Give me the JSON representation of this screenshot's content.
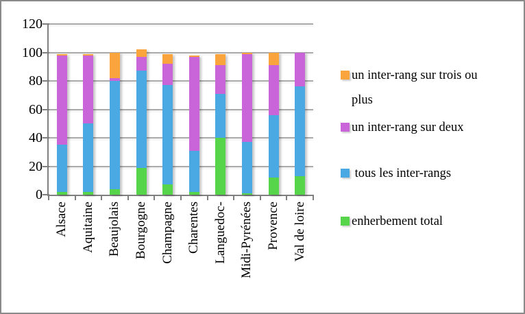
{
  "chart_data": {
    "type": "bar",
    "stacked": true,
    "title": "",
    "xlabel": "",
    "ylabel": "",
    "categories": [
      "Alsace",
      "Aquitaine",
      "Beaujolais",
      "Bourgogne",
      "Champagne",
      "Charentes",
      "Languedoc-",
      "Midi-Pyrénées",
      "Provence",
      "Val de loire"
    ],
    "series": [
      {
        "name": "enherbement total",
        "color": "#57D54A",
        "values": [
          2,
          2,
          4,
          19,
          7,
          2,
          40,
          1,
          12,
          13
        ]
      },
      {
        "name": "tous les inter-rangs",
        "color": "#4AA8E3",
        "values": [
          33,
          48,
          76,
          68,
          70,
          29,
          31,
          36,
          44,
          63
        ]
      },
      {
        "name": "un inter-rang sur deux",
        "color": "#C965D9",
        "values": [
          63,
          48,
          2,
          10,
          15,
          66,
          20,
          62,
          35,
          24
        ]
      },
      {
        "name": "un inter-rang sur trois ou plus",
        "color": "#F9A43C",
        "values": [
          1,
          1,
          18,
          5,
          7,
          1,
          8,
          1,
          9,
          0
        ]
      }
    ],
    "ylim": [
      0,
      120
    ],
    "yticks": [
      0,
      20,
      40,
      60,
      80,
      100,
      120
    ],
    "grid": true,
    "legend": {
      "position": "right",
      "entries": [
        {
          "label": "un inter-rang sur trois ou plus",
          "color": "#F9A43C"
        },
        {
          "label": "un inter-rang sur deux",
          "color": "#C965D9"
        },
        {
          "label": " tous les inter-rangs",
          "color": "#4AA8E3"
        },
        {
          "label": "enherbement total",
          "color": "#57D54A"
        }
      ]
    }
  },
  "style": {
    "background": "#FFFFFF",
    "border_color": "#8A8A8A",
    "gridline_color": "#ABABAB",
    "axis_color": "#7F7F7F",
    "text_color": "#000000"
  }
}
